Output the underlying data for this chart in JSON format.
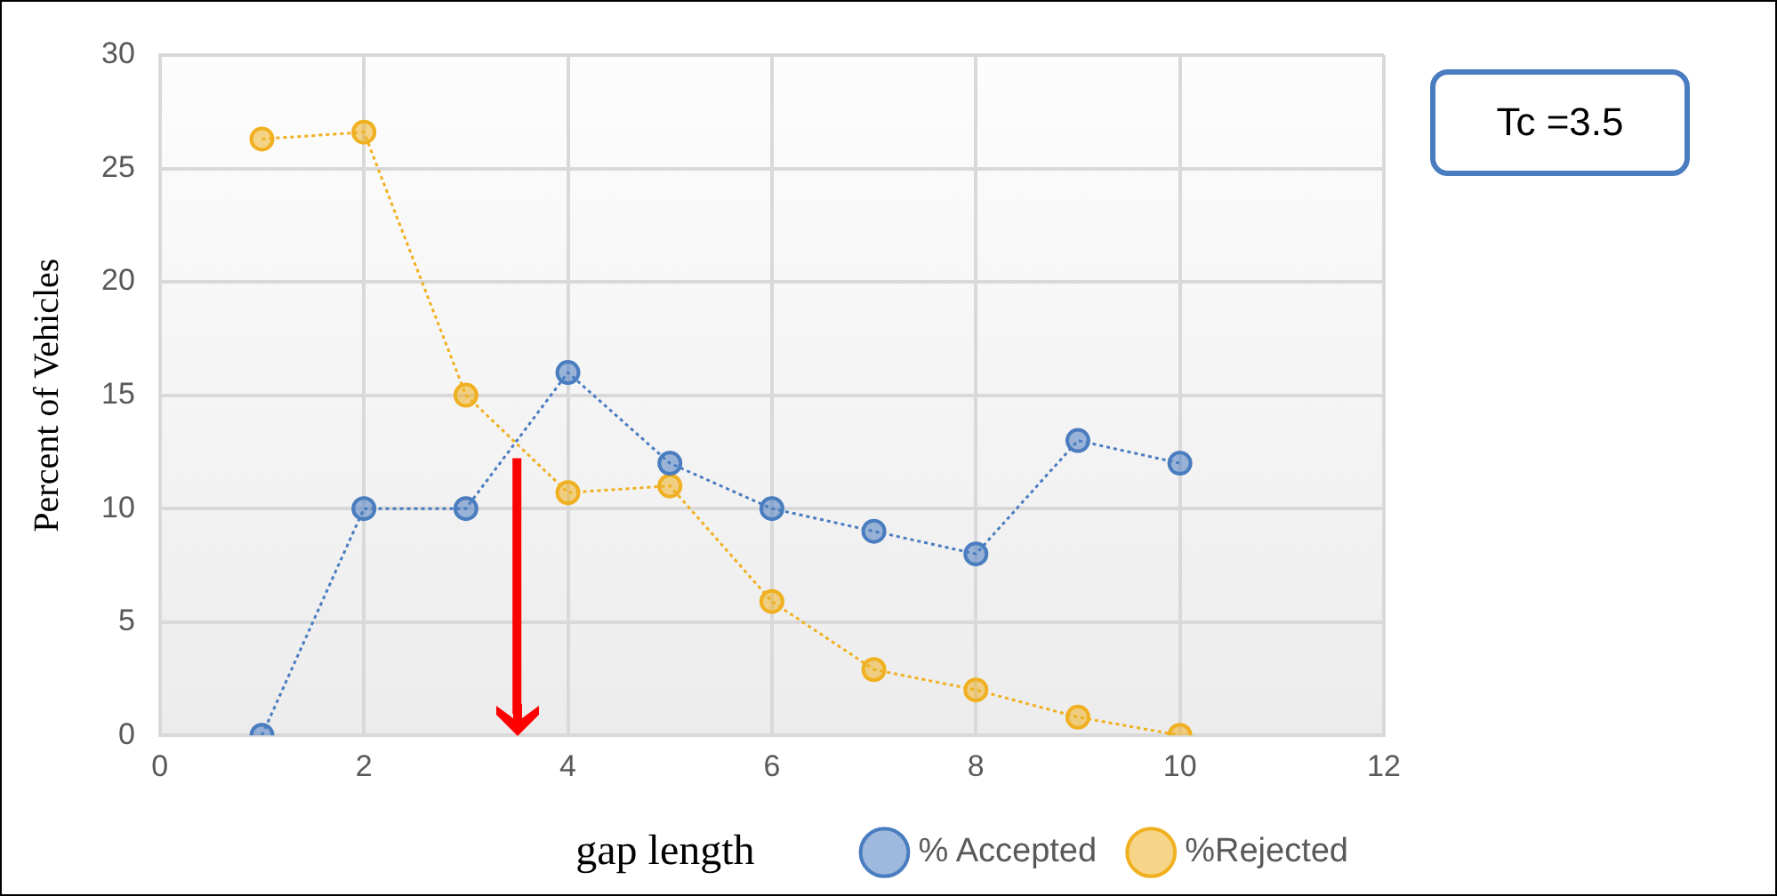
{
  "chart_data": {
    "type": "line",
    "xlabel": "gap length",
    "ylabel": "Percent of Vehicles",
    "x": [
      1,
      2,
      3,
      4,
      5,
      6,
      7,
      8,
      9,
      10
    ],
    "series": [
      {
        "name": "% Accepted",
        "color": "#4a7cc0",
        "values": [
          0,
          10,
          10,
          16,
          12,
          10,
          9,
          8,
          13,
          12
        ]
      },
      {
        "name": "%Rejected",
        "color": "#f0b020",
        "values": [
          26.3,
          26.6,
          15,
          10.7,
          11,
          5.9,
          2.9,
          2,
          0.8,
          0
        ]
      }
    ],
    "xlim": [
      0,
      12
    ],
    "xticks": [
      0,
      2,
      4,
      6,
      8,
      10,
      12
    ],
    "ylim": [
      0,
      30
    ],
    "yticks": [
      0,
      5,
      10,
      15,
      20,
      25,
      30
    ],
    "grid": true,
    "legend": "bottom right",
    "marker": "circle",
    "line_style": "dotted",
    "ref_lines": [
      {
        "axis": "x",
        "value": 3.5,
        "color": "#ff0000"
      }
    ],
    "annotations": [
      "Tc =3.5"
    ]
  }
}
